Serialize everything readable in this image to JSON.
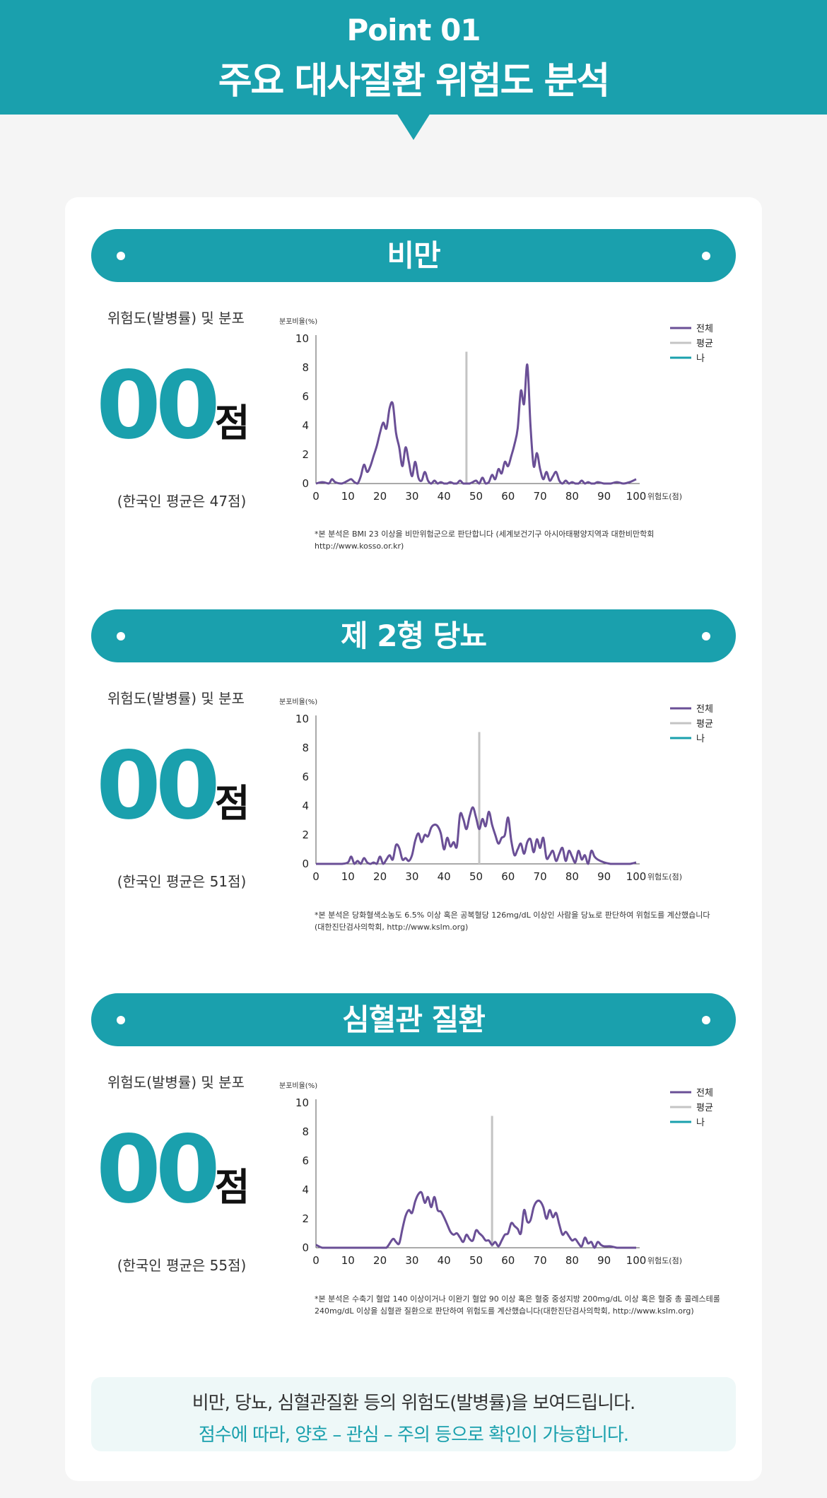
{
  "header": {
    "point": "Point 01",
    "title": "주요 대사질환 위험도 분석"
  },
  "colors": {
    "accent": "#1aa0ad",
    "series_all": "#6a4f96",
    "series_avg": "#c4c4c4",
    "series_me": "#1aa0ad"
  },
  "sections": [
    {
      "title": "비만",
      "dist_label": "위험도(발병률) 및 분포",
      "score": "00",
      "score_unit": "점",
      "avg_text": "(한국인 평균은 47점)",
      "note_lines": [
        "*본 분석은 BMI 23 이상을 비만위험군으로 판단합니다 (세계보건기구 아시아태평양지역과 대한비만학회 http://www.kosso.or.kr)"
      ]
    },
    {
      "title": "제 2형 당뇨",
      "dist_label": "위험도(발병률) 및 분포",
      "score": "00",
      "score_unit": "점",
      "avg_text": "(한국인 평균은 51점)",
      "note_lines": [
        "*본 분석은 당화혈색소농도 6.5% 이상 혹은 공복혈당 126mg/dL 이상인 사람을 당뇨로 판단하여 위험도를 계산했습니다",
        "(대한진단검사의학회, http://www.kslm.org)"
      ]
    },
    {
      "title": "심혈관 질환",
      "dist_label": "위험도(발병률) 및 분포",
      "score": "00",
      "score_unit": "점",
      "avg_text": "(한국인 평균은 55점)",
      "note_lines": [
        "*본 분석은 수축기 혈압 140 이상이거나 이완기 혈압 90 이상 혹은 혈중 중성지방 200mg/dL 이상 혹은 혈중 총 콜레스테롤",
        "240mg/dL 이상을 심혈관 질환으로 판단하여 위험도를 계산했습니다(대한진단검사의학회, http://www.kslm.org)"
      ]
    }
  ],
  "chart_data": [
    {
      "type": "line",
      "ylabel": "분포비율(%)",
      "xlabel": "위험도(점)",
      "xlim": [
        0,
        100
      ],
      "ylim": [
        0,
        10
      ],
      "xticks": [
        0,
        10,
        20,
        30,
        40,
        50,
        60,
        70,
        80,
        90,
        100
      ],
      "yticks": [
        0,
        2,
        4,
        6,
        8,
        10
      ],
      "legend": [
        "전체",
        "평균",
        "나"
      ],
      "legend_position": "top-right",
      "average": 47,
      "series": [
        {
          "name": "전체",
          "x": [
            0,
            2,
            4,
            5,
            6,
            8,
            10,
            11,
            12,
            13,
            14,
            15,
            16,
            17,
            18,
            19,
            20,
            21,
            22,
            23,
            24,
            25,
            26,
            27,
            28,
            29,
            30,
            31,
            32,
            33,
            34,
            35,
            36,
            37,
            38,
            39,
            40,
            41,
            42,
            43,
            44,
            45,
            46,
            47,
            48,
            49,
            50,
            51,
            52,
            53,
            54,
            55,
            56,
            57,
            58,
            59,
            60,
            61,
            62,
            63,
            64,
            65,
            66,
            67,
            68,
            69,
            70,
            71,
            72,
            73,
            74,
            75,
            76,
            77,
            78,
            79,
            80,
            81,
            82,
            83,
            84,
            85,
            86,
            87,
            88,
            90,
            92,
            94,
            96,
            98,
            100
          ],
          "y": [
            0,
            0.1,
            0,
            0.3,
            0.1,
            0,
            0.2,
            0.3,
            0.1,
            0,
            0.5,
            1.3,
            0.8,
            1.2,
            1.9,
            2.6,
            3.5,
            4.2,
            3.8,
            5.2,
            5.5,
            3.5,
            2.5,
            1.2,
            2.5,
            1.5,
            0.5,
            1.5,
            0.4,
            0.2,
            0.8,
            0.2,
            0,
            0.2,
            0,
            0.1,
            0,
            0,
            0.1,
            0,
            0,
            0.2,
            0,
            0,
            0,
            0.1,
            0.2,
            0,
            0.4,
            0,
            0.1,
            0.6,
            0.3,
            1.0,
            0.7,
            1.5,
            1.2,
            1.9,
            2.7,
            3.8,
            6.4,
            5.5,
            8.2,
            4.0,
            1.2,
            2.1,
            1.0,
            0.3,
            0.8,
            0.2,
            0.5,
            0.8,
            0.2,
            0,
            0.2,
            0,
            0.1,
            0,
            0,
            0.2,
            0,
            0.1,
            0,
            0,
            0.1,
            0,
            0,
            0.1,
            0,
            0.1,
            0.3
          ]
        }
      ]
    },
    {
      "type": "line",
      "ylabel": "분포비율(%)",
      "xlabel": "위험도(점)",
      "xlim": [
        0,
        100
      ],
      "ylim": [
        0,
        10
      ],
      "xticks": [
        0,
        10,
        20,
        30,
        40,
        50,
        60,
        70,
        80,
        90,
        100
      ],
      "yticks": [
        0,
        2,
        4,
        6,
        8,
        10
      ],
      "legend": [
        "전체",
        "평균",
        "나"
      ],
      "legend_position": "top-right",
      "average": 51,
      "series": [
        {
          "name": "전체",
          "x": [
            0,
            2,
            4,
            6,
            8,
            10,
            11,
            12,
            13,
            14,
            15,
            16,
            17,
            18,
            19,
            20,
            21,
            22,
            23,
            24,
            25,
            26,
            27,
            28,
            29,
            30,
            31,
            32,
            33,
            34,
            35,
            36,
            37,
            38,
            39,
            40,
            41,
            42,
            43,
            44,
            45,
            46,
            47,
            48,
            49,
            50,
            51,
            52,
            53,
            54,
            55,
            56,
            57,
            58,
            59,
            60,
            61,
            62,
            63,
            64,
            65,
            66,
            67,
            68,
            69,
            70,
            71,
            72,
            73,
            74,
            75,
            76,
            77,
            78,
            79,
            80,
            81,
            82,
            83,
            84,
            85,
            86,
            87,
            88,
            90,
            92,
            94,
            96,
            98,
            100
          ],
          "y": [
            0,
            0,
            0,
            0,
            0,
            0.1,
            0.5,
            0,
            0.2,
            0,
            0.4,
            0.1,
            0,
            0.1,
            0,
            0.5,
            0,
            0.3,
            0.6,
            0.3,
            1.3,
            1.1,
            0.3,
            0.4,
            0.2,
            0.6,
            1.6,
            2.1,
            1.5,
            2.0,
            1.9,
            2.5,
            2.7,
            2.6,
            2.1,
            1.0,
            1.8,
            1.2,
            1.5,
            1.2,
            3.4,
            3.1,
            2.4,
            3.3,
            3.9,
            3.2,
            2.4,
            3.1,
            2.6,
            3.6,
            2.7,
            2.0,
            1.4,
            1.8,
            2.0,
            3.2,
            1.6,
            0.6,
            1.0,
            1.4,
            0.7,
            1.5,
            1.7,
            0.8,
            1.7,
            1.1,
            1.8,
            0.4,
            0.6,
            0.9,
            0.2,
            0.7,
            1.1,
            0.2,
            0.9,
            0.5,
            0.1,
            0.9,
            0.3,
            0.6,
            0,
            0.9,
            0.5,
            0.3,
            0.1,
            0,
            0,
            0,
            0,
            0.1
          ]
        }
      ]
    },
    {
      "type": "line",
      "ylabel": "분포비율(%)",
      "xlabel": "위험도(점)",
      "xlim": [
        0,
        100
      ],
      "ylim": [
        0,
        10
      ],
      "xticks": [
        0,
        10,
        20,
        30,
        40,
        50,
        60,
        70,
        80,
        90,
        100
      ],
      "yticks": [
        0,
        2,
        4,
        6,
        8,
        10
      ],
      "legend": [
        "전체",
        "평균",
        "나"
      ],
      "legend_position": "top-right",
      "average": 55,
      "series": [
        {
          "name": "전체",
          "x": [
            0,
            2,
            4,
            6,
            8,
            10,
            12,
            14,
            16,
            18,
            20,
            22,
            24,
            25,
            26,
            27,
            28,
            29,
            30,
            31,
            32,
            33,
            34,
            35,
            36,
            37,
            38,
            39,
            40,
            41,
            42,
            43,
            44,
            45,
            46,
            47,
            48,
            49,
            50,
            51,
            52,
            53,
            54,
            55,
            56,
            57,
            58,
            59,
            60,
            61,
            62,
            63,
            64,
            65,
            66,
            67,
            68,
            69,
            70,
            71,
            72,
            73,
            74,
            75,
            76,
            77,
            78,
            79,
            80,
            81,
            82,
            83,
            84,
            85,
            86,
            87,
            88,
            89,
            90,
            92,
            94,
            96,
            98,
            100
          ],
          "y": [
            0.2,
            0,
            0,
            0,
            0,
            0,
            0,
            0,
            0,
            0,
            0,
            0,
            0.6,
            0.4,
            0.3,
            1.3,
            2.2,
            2.6,
            2.4,
            3.2,
            3.7,
            3.8,
            3.1,
            3.5,
            2.8,
            3.5,
            2.6,
            2.5,
            2.1,
            1.6,
            1.1,
            0.9,
            1.0,
            0.7,
            0.4,
            0.9,
            0.6,
            0.5,
            1.2,
            1.0,
            0.8,
            0.5,
            0.5,
            0.2,
            0.4,
            0.1,
            0.5,
            0.9,
            1.0,
            1.7,
            1.5,
            1.3,
            1.0,
            2.6,
            1.8,
            1.9,
            2.8,
            3.2,
            3.2,
            2.8,
            2.0,
            2.6,
            2.1,
            2.4,
            1.6,
            0.9,
            1.1,
            0.8,
            0.5,
            0.6,
            0.3,
            0.1,
            0.7,
            0.3,
            0.4,
            0,
            0.4,
            0.2,
            0.1,
            0.1,
            0,
            0,
            0,
            0
          ]
        }
      ]
    }
  ],
  "bottom": {
    "line1": "비만, 당뇨, 심혈관질환 등의 위험도(발병률)을 보여드립니다.",
    "line2": "점수에 따라, 양호 – 관심 – 주의 등으로 확인이 가능합니다."
  }
}
